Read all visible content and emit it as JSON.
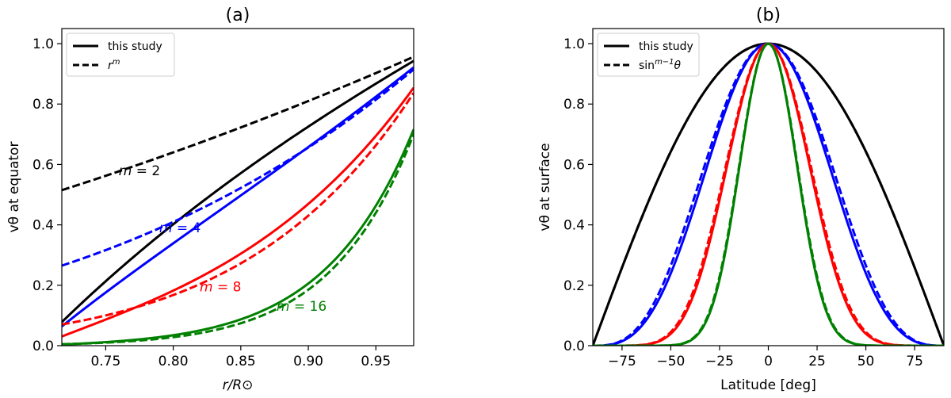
{
  "chart_data": [
    {
      "type": "line",
      "title": "(a)",
      "xlabel": "r/R⊙",
      "ylabel": "vθ at equator",
      "xlim": [
        0.7175,
        0.978
      ],
      "ylim": [
        0.0,
        1.05
      ],
      "xticks": [
        0.75,
        0.8,
        0.85,
        0.9,
        0.95
      ],
      "xtick_labels": [
        "0.75",
        "0.80",
        "0.85",
        "0.90",
        "0.95"
      ],
      "yticks": [
        0.0,
        0.2,
        0.4,
        0.6,
        0.8,
        1.0
      ],
      "ytick_labels": [
        "0.0",
        "0.2",
        "0.4",
        "0.6",
        "0.8",
        "1.0"
      ],
      "grid": false,
      "legend": {
        "placement": "top-left",
        "entries": [
          {
            "label": "this study",
            "style": "solid"
          },
          {
            "label": "r",
            "sup": "m",
            "style": "dashed"
          }
        ]
      },
      "series": [
        {
          "m": 2,
          "name": "m = 2",
          "label_lhs": "m",
          "label_rhs": " = 2",
          "label_at": [
            0.775,
            0.565
          ],
          "color": "#000000"
        },
        {
          "m": 4,
          "name": "m = 4",
          "label_lhs": "m",
          "label_rhs": " = 4",
          "label_at": [
            0.805,
            0.375
          ],
          "color": "#0000ff"
        },
        {
          "m": 8,
          "name": "m = 8",
          "label_lhs": "m",
          "label_rhs": " = 8",
          "label_at": [
            0.835,
            0.18
          ],
          "color": "#ff0000"
        },
        {
          "m": 16,
          "name": "m = 16",
          "label_lhs": "m",
          "label_rhs": " = 16",
          "label_at": [
            0.895,
            0.115
          ],
          "color": "#008000"
        }
      ]
    },
    {
      "type": "line",
      "title": "(b)",
      "xlabel": "Latitude [deg]",
      "ylabel": "vθ at surface",
      "xlim": [
        -90,
        90
      ],
      "ylim": [
        0.0,
        1.05
      ],
      "xticks": [
        -75,
        -50,
        -25,
        0,
        25,
        50,
        75
      ],
      "xtick_labels": [
        "−75",
        "−50",
        "−25",
        "0",
        "25",
        "50",
        "75"
      ],
      "yticks": [
        0.0,
        0.2,
        0.4,
        0.6,
        0.8,
        1.0
      ],
      "ytick_labels": [
        "0.0",
        "0.2",
        "0.4",
        "0.6",
        "0.8",
        "1.0"
      ],
      "grid": false,
      "legend": {
        "placement": "top-left",
        "entries": [
          {
            "label": "this study",
            "style": "solid"
          },
          {
            "label": "sin",
            "sup": "m−1",
            "suffix": "θ",
            "style": "dashed"
          }
        ]
      },
      "series": [
        {
          "m": 2,
          "name": "m = 2",
          "color": "#000000"
        },
        {
          "m": 4,
          "name": "m = 4",
          "color": "#0000ff"
        },
        {
          "m": 8,
          "name": "m = 8",
          "color": "#ff0000"
        },
        {
          "m": 16,
          "name": "m = 16",
          "color": "#008000"
        }
      ]
    }
  ]
}
